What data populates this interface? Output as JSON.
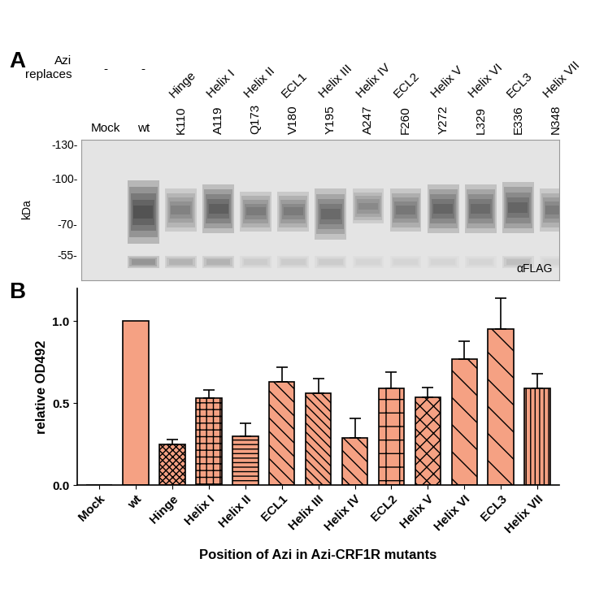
{
  "panel_labels": [
    "A",
    "B"
  ],
  "blot": {
    "row_header": [
      "Azi",
      "replaces"
    ],
    "y_label": "kDa",
    "antibody": "αFLAG",
    "ylim": [
      45,
      135
    ],
    "markers": [
      {
        "value": 130,
        "label": "-130-"
      },
      {
        "value": 100,
        "label": "-100-"
      },
      {
        "value": 70,
        "label": "-70-"
      },
      {
        "value": 55,
        "label": "-55-"
      }
    ],
    "lower_band_kda": 52,
    "lanes": [
      {
        "azi": "-",
        "label": "Mock",
        "region": null,
        "main_band_kda": null,
        "main_intensity": null,
        "lower_intensity": null
      },
      {
        "azi": "-",
        "label": "wt",
        "region": null,
        "main_band_kda": [
          60,
          98
        ],
        "main_intensity": 1.0,
        "lower_intensity": 0.6
      },
      {
        "azi": null,
        "label": "K110",
        "region": "Hinge",
        "main_band_kda": [
          66,
          92
        ],
        "main_intensity": 0.55,
        "lower_intensity": 0.35
      },
      {
        "azi": null,
        "label": "A119",
        "region": "Helix I",
        "main_band_kda": [
          65,
          95
        ],
        "main_intensity": 0.85,
        "lower_intensity": 0.35
      },
      {
        "azi": null,
        "label": "Q173",
        "region": "Helix II",
        "main_band_kda": [
          66,
          90
        ],
        "main_intensity": 0.6,
        "lower_intensity": 0.15
      },
      {
        "azi": null,
        "label": "V180",
        "region": "ECL1",
        "main_band_kda": [
          66,
          90
        ],
        "main_intensity": 0.6,
        "lower_intensity": 0.15
      },
      {
        "azi": null,
        "label": "Y195",
        "region": "Helix III",
        "main_band_kda": [
          62,
          92
        ],
        "main_intensity": 0.75,
        "lower_intensity": 0.15
      },
      {
        "azi": null,
        "label": "A247",
        "region": "Helix IV",
        "main_band_kda": [
          70,
          92
        ],
        "main_intensity": 0.5,
        "lower_intensity": 0.1
      },
      {
        "azi": null,
        "label": "F260",
        "region": "ECL2",
        "main_band_kda": [
          66,
          92
        ],
        "main_intensity": 0.65,
        "lower_intensity": 0.1
      },
      {
        "azi": null,
        "label": "Y272",
        "region": "Helix V",
        "main_band_kda": [
          65,
          95
        ],
        "main_intensity": 0.8,
        "lower_intensity": 0.1
      },
      {
        "azi": null,
        "label": "L329",
        "region": "Helix VI",
        "main_band_kda": [
          65,
          95
        ],
        "main_intensity": 0.75,
        "lower_intensity": 0.1
      },
      {
        "azi": null,
        "label": "E336",
        "region": "ECL3",
        "main_band_kda": [
          65,
          97
        ],
        "main_intensity": 0.8,
        "lower_intensity": 0.25
      },
      {
        "azi": null,
        "label": "N348",
        "region": "Helix VII",
        "main_band_kda": [
          66,
          92
        ],
        "main_intensity": 0.6,
        "lower_intensity": 0.1
      }
    ]
  },
  "chart_data": {
    "type": "bar",
    "xlabel": "Position of Azi in Azi-CRF1R mutants",
    "ylabel": "relative OD492",
    "categories": [
      "Mock",
      "wt",
      "Hinge",
      "Helix I",
      "Helix II",
      "ECL1",
      "Helix III",
      "Helix IV",
      "ECL2",
      "Helix V",
      "Helix VI",
      "ECL3",
      "Helix VII"
    ],
    "values": [
      0.0,
      1.0,
      0.25,
      0.53,
      0.3,
      0.63,
      0.56,
      0.29,
      0.59,
      0.535,
      0.77,
      0.95,
      0.59
    ],
    "errors": [
      null,
      null,
      0.03,
      0.05,
      0.08,
      0.09,
      0.09,
      0.12,
      0.1,
      0.06,
      0.11,
      0.19,
      0.09
    ],
    "color": "#f5a183",
    "ylim": [
      0,
      1.2
    ],
    "yticks": [
      {
        "value": 0.0,
        "label": "0.0"
      },
      {
        "value": 0.5,
        "label": "0.5"
      },
      {
        "value": 1.0,
        "label": "1.0"
      }
    ]
  }
}
